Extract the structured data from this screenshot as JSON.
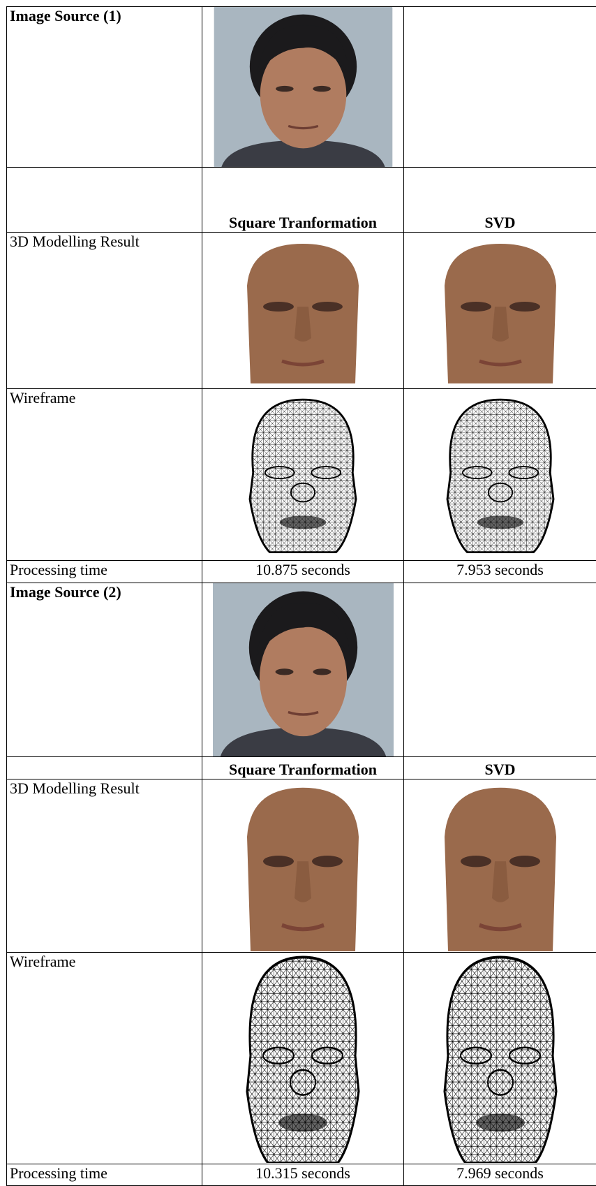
{
  "table": {
    "rows": [
      {
        "label": "Image Source (1)"
      },
      {
        "headers": [
          "Square Tranformation",
          "SVD"
        ]
      },
      {
        "label": "3D Modelling Result"
      },
      {
        "label": "Wireframe"
      },
      {
        "label": "Processing time",
        "values": [
          "10.875 seconds",
          "7.953 seconds"
        ]
      },
      {
        "label": "Image Source (2)"
      },
      {
        "headers": [
          "Square Tranformation",
          "SVD"
        ]
      },
      {
        "label": "3D Modelling Result"
      },
      {
        "label": "Wireframe"
      },
      {
        "label": "Processing time",
        "values": [
          "10.315 seconds",
          "7.969 seconds"
        ]
      }
    ]
  }
}
